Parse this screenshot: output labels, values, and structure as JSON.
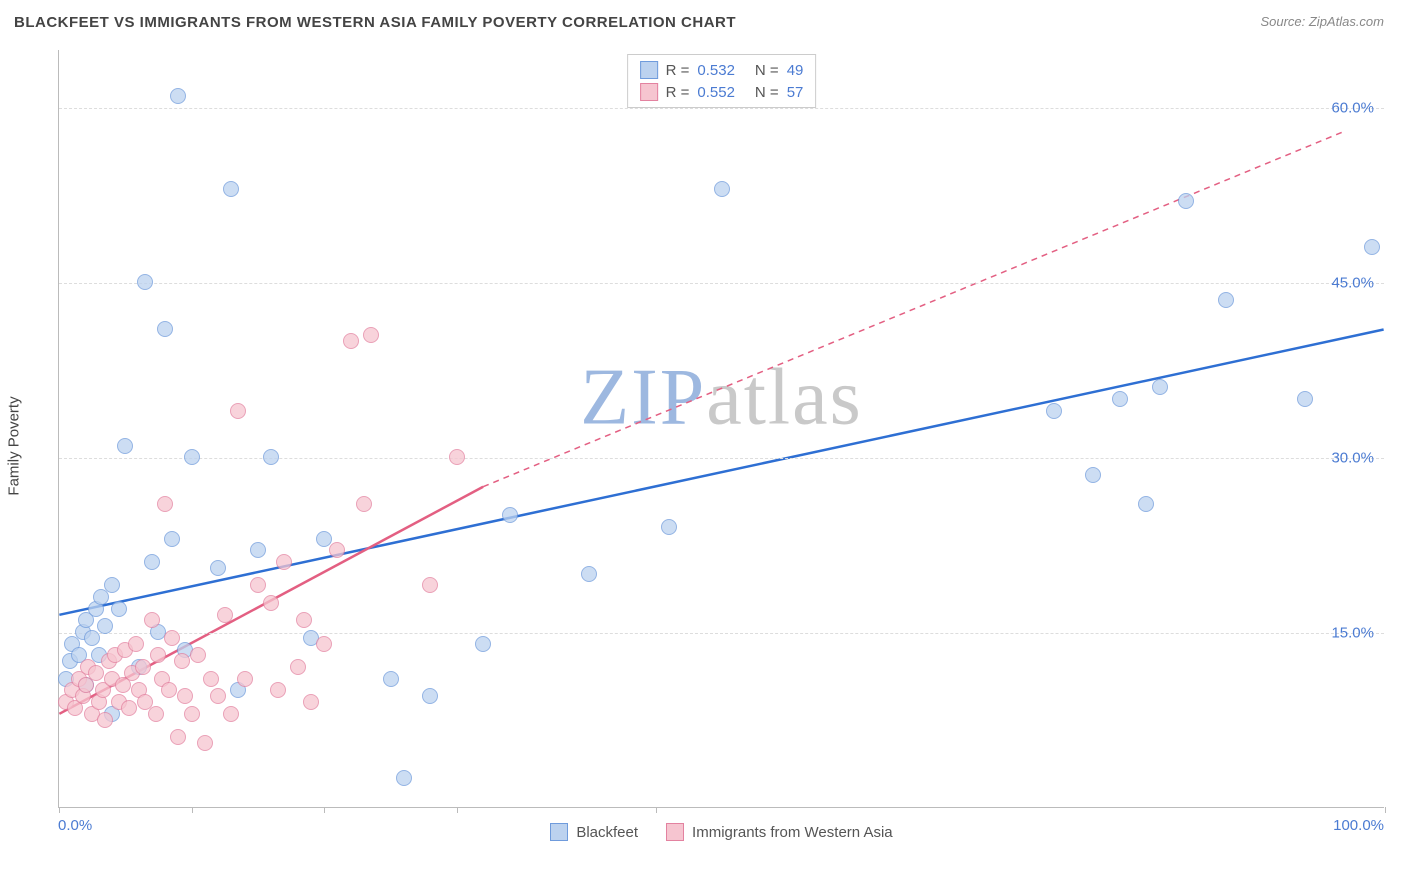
{
  "title": "BLACKFEET VS IMMIGRANTS FROM WESTERN ASIA FAMILY POVERTY CORRELATION CHART",
  "source_label": "Source: ",
  "source_name": "ZipAtlas.com",
  "ylabel": "Family Poverty",
  "watermark_a": "ZIP",
  "watermark_b": "atlas",
  "watermark_color_a": "#9db8e0",
  "watermark_color_b": "#c9c9c9",
  "chart": {
    "type": "scatter",
    "xlim": [
      0,
      100
    ],
    "ylim": [
      0,
      65
    ],
    "y_ticks": [
      15,
      30,
      45,
      60
    ],
    "y_tick_labels": [
      "15.0%",
      "30.0%",
      "45.0%",
      "60.0%"
    ],
    "x_ticks": [
      0,
      10,
      20,
      30,
      45,
      100
    ],
    "x_range_labels": {
      "min": "0.0%",
      "max": "100.0%"
    },
    "background_color": "#ffffff",
    "grid_color": "#dddddd",
    "axis_color": "#bbbbbb",
    "tick_label_color": "#4b7bd2",
    "marker_radius": 8,
    "series": [
      {
        "name": "Blackfeet",
        "label": "Blackfeet",
        "R_label": "R = ",
        "R_value": "0.532",
        "N_label": "N = ",
        "N_value": "49",
        "fill": "#bcd2ef",
        "stroke": "#6f9bdc",
        "line_color": "#2e6fd3",
        "line_dash_ext": "4,4",
        "trend_solid": {
          "x1": 0,
          "y1": 16.5,
          "x2": 100,
          "y2": 41
        },
        "points": [
          [
            0.5,
            11
          ],
          [
            0.8,
            12.5
          ],
          [
            1,
            14
          ],
          [
            1.5,
            13
          ],
          [
            1.8,
            15
          ],
          [
            2,
            10.5
          ],
          [
            2,
            16
          ],
          [
            2.5,
            14.5
          ],
          [
            2.8,
            17
          ],
          [
            3,
            13
          ],
          [
            3.2,
            18
          ],
          [
            3.5,
            15.5
          ],
          [
            4,
            19
          ],
          [
            4.5,
            17
          ],
          [
            4,
            8
          ],
          [
            5,
            31
          ],
          [
            6,
            12
          ],
          [
            6.5,
            45
          ],
          [
            7,
            21
          ],
          [
            7.5,
            15
          ],
          [
            8,
            41
          ],
          [
            8.5,
            23
          ],
          [
            9,
            61
          ],
          [
            9.5,
            13.5
          ],
          [
            10,
            30
          ],
          [
            12,
            20.5
          ],
          [
            13,
            53
          ],
          [
            13.5,
            10
          ],
          [
            15,
            22
          ],
          [
            16,
            30
          ],
          [
            19,
            14.5
          ],
          [
            20,
            23
          ],
          [
            25,
            11
          ],
          [
            26,
            2.5
          ],
          [
            28,
            9.5
          ],
          [
            32,
            14
          ],
          [
            34,
            25
          ],
          [
            40,
            20
          ],
          [
            46,
            24
          ],
          [
            50,
            53
          ],
          [
            75,
            34
          ],
          [
            78,
            28.5
          ],
          [
            80,
            35
          ],
          [
            82,
            26
          ],
          [
            83,
            36
          ],
          [
            85,
            52
          ],
          [
            88,
            43.5
          ],
          [
            94,
            35
          ],
          [
            99,
            48
          ]
        ]
      },
      {
        "name": "Immigrants from Western Asia",
        "label": "Immigrants from Western Asia",
        "R_label": "R = ",
        "R_value": "0.552",
        "N_label": "N = ",
        "N_value": "57",
        "fill": "#f6c5d0",
        "stroke": "#e382a0",
        "line_color": "#e35f82",
        "line_dash_ext": "6,5",
        "trend_solid": {
          "x1": 0,
          "y1": 8,
          "x2": 32,
          "y2": 27.5
        },
        "trend_dash": {
          "x1": 32,
          "y1": 27.5,
          "x2": 97,
          "y2": 58
        },
        "points": [
          [
            0.5,
            9
          ],
          [
            1,
            10
          ],
          [
            1.2,
            8.5
          ],
          [
            1.5,
            11
          ],
          [
            1.8,
            9.5
          ],
          [
            2,
            10.5
          ],
          [
            2.2,
            12
          ],
          [
            2.5,
            8
          ],
          [
            2.8,
            11.5
          ],
          [
            3,
            9
          ],
          [
            3.3,
            10
          ],
          [
            3.5,
            7.5
          ],
          [
            3.8,
            12.5
          ],
          [
            4,
            11
          ],
          [
            4.2,
            13
          ],
          [
            4.5,
            9
          ],
          [
            4.8,
            10.5
          ],
          [
            5,
            13.5
          ],
          [
            5.3,
            8.5
          ],
          [
            5.5,
            11.5
          ],
          [
            5.8,
            14
          ],
          [
            6,
            10
          ],
          [
            6.3,
            12
          ],
          [
            6.5,
            9
          ],
          [
            7,
            16
          ],
          [
            7.3,
            8
          ],
          [
            7.5,
            13
          ],
          [
            7.8,
            11
          ],
          [
            8,
            26
          ],
          [
            8.3,
            10
          ],
          [
            8.5,
            14.5
          ],
          [
            9,
            6
          ],
          [
            9.3,
            12.5
          ],
          [
            9.5,
            9.5
          ],
          [
            10,
            8
          ],
          [
            10.5,
            13
          ],
          [
            11,
            5.5
          ],
          [
            11.5,
            11
          ],
          [
            12,
            9.5
          ],
          [
            12.5,
            16.5
          ],
          [
            13,
            8
          ],
          [
            13.5,
            34
          ],
          [
            14,
            11
          ],
          [
            15,
            19
          ],
          [
            16,
            17.5
          ],
          [
            16.5,
            10
          ],
          [
            17,
            21
          ],
          [
            18,
            12
          ],
          [
            18.5,
            16
          ],
          [
            19,
            9
          ],
          [
            20,
            14
          ],
          [
            21,
            22
          ],
          [
            22,
            40
          ],
          [
            23,
            26
          ],
          [
            23.5,
            40.5
          ],
          [
            28,
            19
          ],
          [
            30,
            30
          ]
        ]
      }
    ]
  }
}
